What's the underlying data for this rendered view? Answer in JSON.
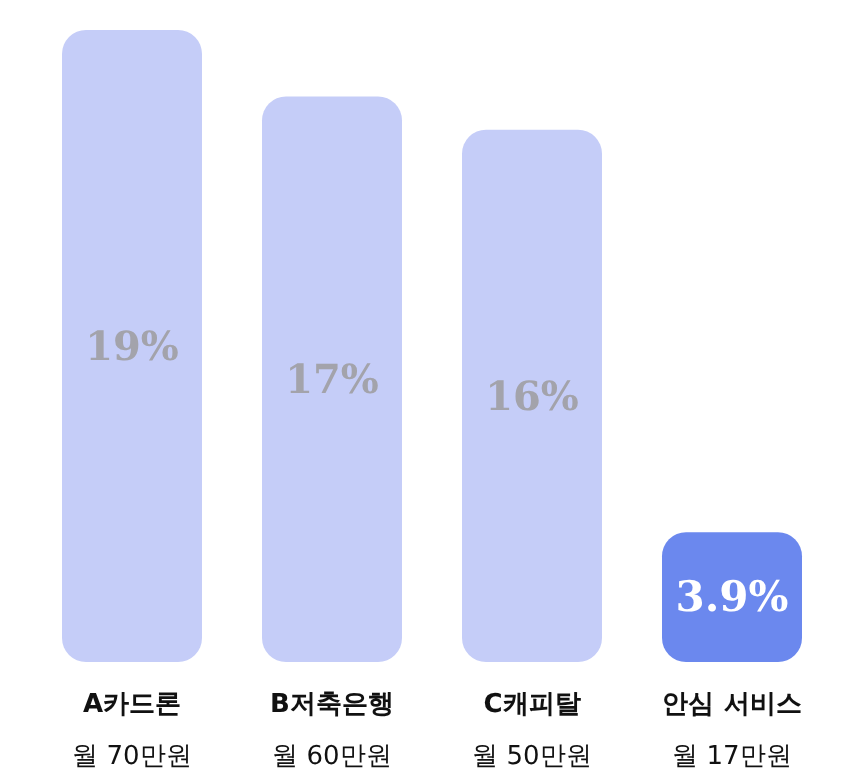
{
  "chart_data": {
    "type": "bar",
    "categories": [
      "A카드론\n월 70만원",
      "B저축은행\n월 60만원",
      "C캐피탈\n월 50만원",
      "안심 서비스\n월 17만원"
    ],
    "values": [
      19,
      17,
      16,
      3.9
    ],
    "colors": [
      "#c5cdf8",
      "#c5cdf8",
      "#c5cdf8",
      "#6b88ee"
    ],
    "value_labels": [
      "19%",
      "17%",
      "16%",
      "3.9%"
    ]
  }
}
